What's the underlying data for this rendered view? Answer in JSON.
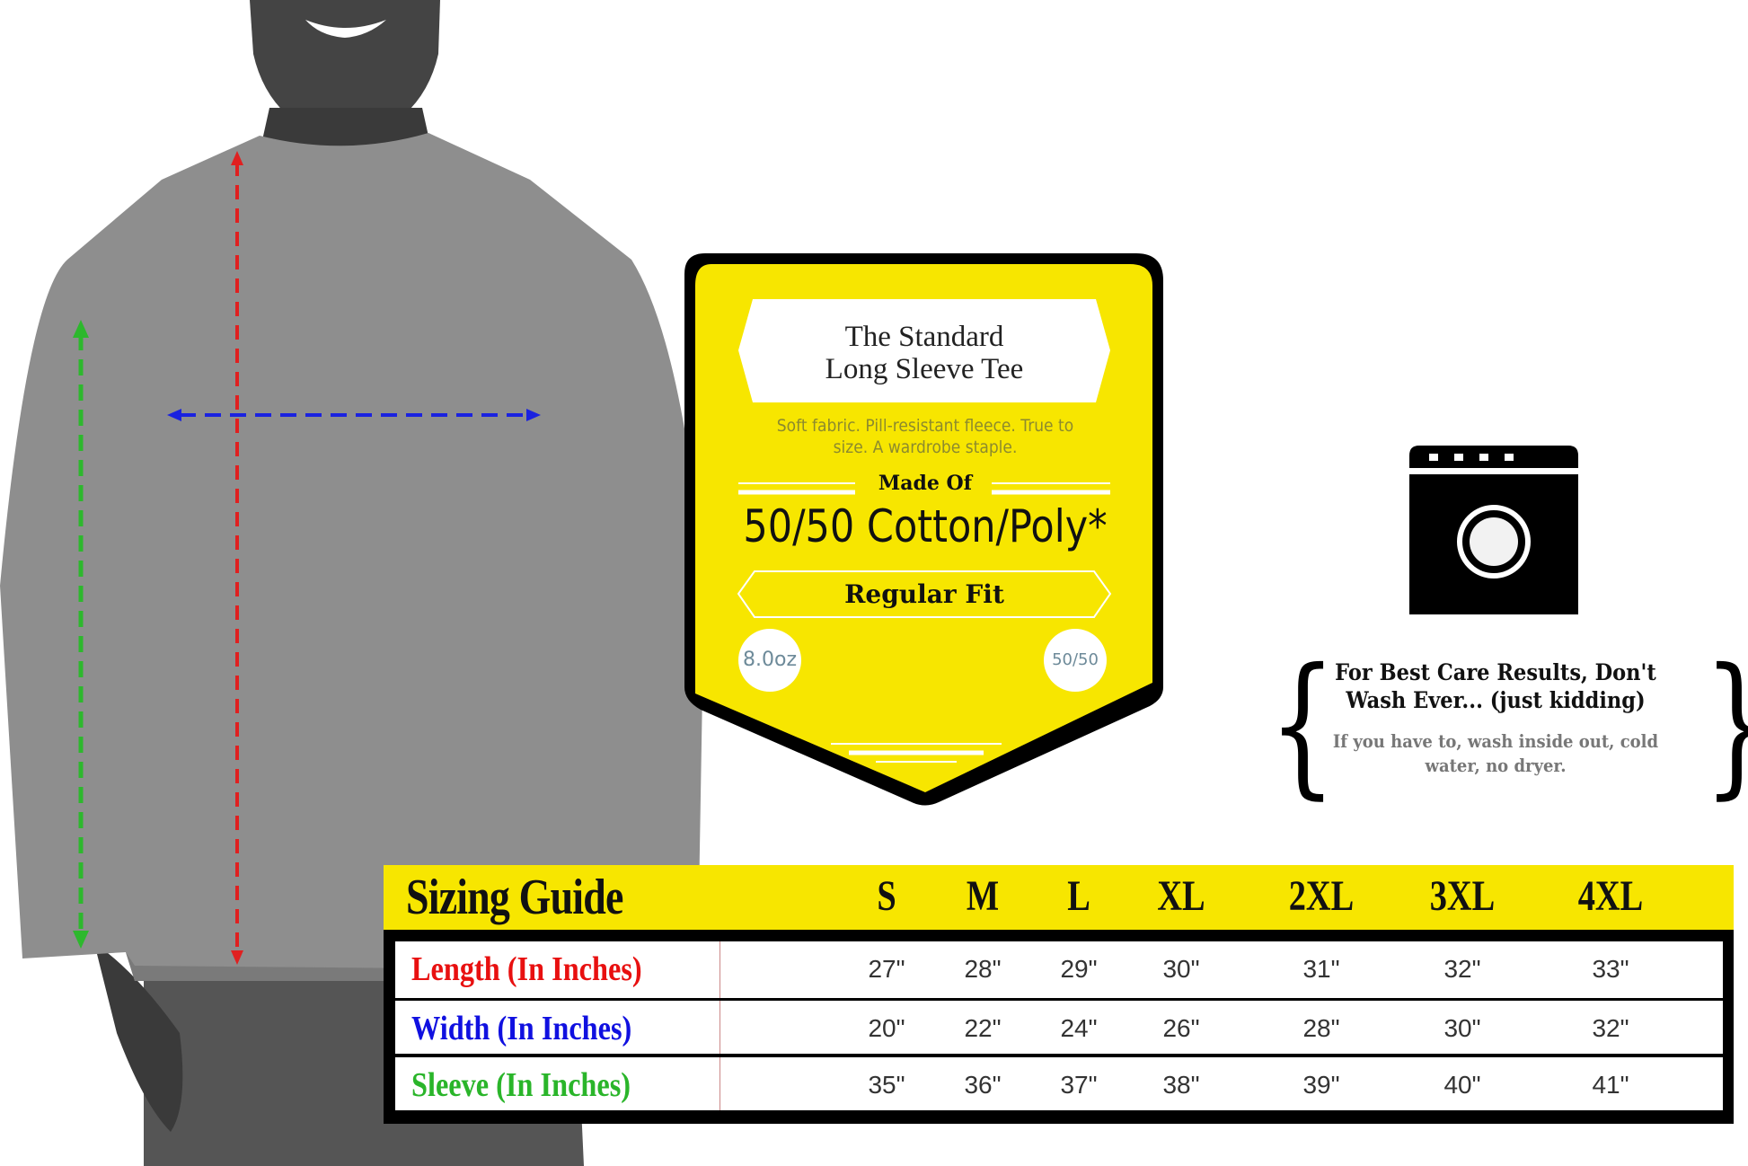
{
  "badge": {
    "title_line1": "The Standard",
    "title_line2": "Long Sleeve Tee",
    "description_line1": "Soft fabric. Pill-resistant fleece. True to",
    "description_line2": "size. A wardrobe staple.",
    "made_of_label": "Made Of",
    "material": "50/50 Cotton/Poly*",
    "fit": "Regular Fit",
    "weight": "8.0oz",
    "blend": "50/50",
    "color": "#f7e600"
  },
  "care": {
    "icon": "washing-machine-icon",
    "heading_line1": "For Best Care Results, Don't",
    "heading_line2": "Wash Ever... (just kidding)",
    "sub_line1": "If you have to, wash inside out, cold",
    "sub_line2": "water, no dryer.",
    "brace_left": "{",
    "brace_right": "}"
  },
  "figure": {
    "length_arrow_color": "#e02020",
    "width_arrow_color": "#1a22e0",
    "sleeve_arrow_color": "#2db82d"
  },
  "sizing": {
    "title": "Sizing Guide",
    "sizes": [
      "S",
      "M",
      "L",
      "XL",
      "2XL",
      "3XL",
      "4XL"
    ],
    "rows": [
      {
        "label": "Length (In Inches)",
        "color": "#e81010",
        "values": [
          "27\"",
          "28\"",
          "29\"",
          "30\"",
          "31\"",
          "32\"",
          "33\""
        ]
      },
      {
        "label": "Width (In Inches)",
        "color": "#1010e0",
        "values": [
          "20\"",
          "22\"",
          "24\"",
          "26\"",
          "28\"",
          "30\"",
          "32\""
        ]
      },
      {
        "label": "Sleeve (In Inches)",
        "color": "#2ab52a",
        "values": [
          "35\"",
          "36\"",
          "37\"",
          "38\"",
          "39\"",
          "40\"",
          "41\""
        ]
      }
    ]
  }
}
